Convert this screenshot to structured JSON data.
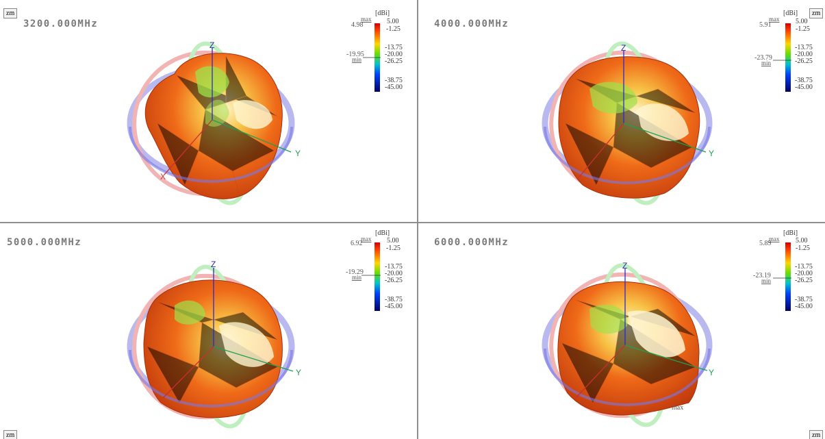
{
  "panels": [
    {
      "freq": "3200.000MHz",
      "max_value": "4.98",
      "min_value": "-19.95",
      "zm_label": "zm"
    },
    {
      "freq": "4000.000MHz",
      "max_value": "5.91",
      "min_value": "-23.79",
      "zm_label": "zm"
    },
    {
      "freq": "5000.000MHz",
      "max_value": "6.92",
      "min_value": "-19.29",
      "zm_label": "zm"
    },
    {
      "freq": "6000.000MHz",
      "max_value": "5.89",
      "min_value": "-23.19",
      "zm_label": "zm",
      "max_marker": "max"
    }
  ],
  "legend": {
    "unit": "[dBi]",
    "max_label": "max",
    "min_label": "min",
    "ticks": [
      "5.00",
      "-1.25",
      "-13.75",
      "-20.00",
      "-26.25",
      "-38.75",
      "-45.00"
    ]
  },
  "axes": {
    "x": "X",
    "y": "Y",
    "z": "Z"
  },
  "colors": {
    "ring_red": "#f2b3b3",
    "ring_blue": "#b9b9f0",
    "ring_green": "#bfeebf",
    "pattern_dark": "#c8320a",
    "pattern_mid": "#ef6a18",
    "pattern_light": "#fff4c8",
    "pattern_green": "#8ed83a"
  }
}
